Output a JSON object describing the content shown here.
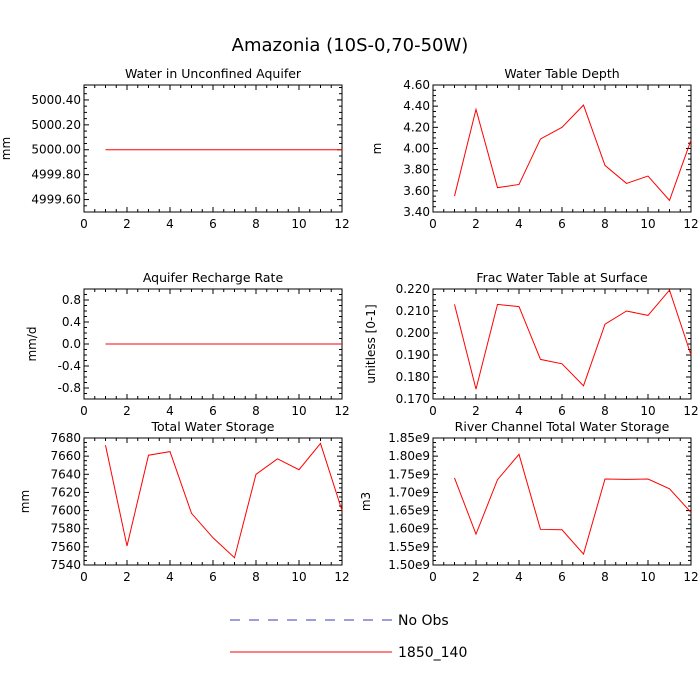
{
  "title": "Amazonia (10S-0,70-50W)",
  "legend": {
    "entries": [
      {
        "label": "No Obs",
        "color": "#3b3bbd",
        "dash": true
      },
      {
        "label": "1850_140",
        "color": "#ff0000",
        "dash": false
      }
    ]
  },
  "chart_data": [
    {
      "type": "line",
      "title": "Water in Unconfined Aquifer",
      "ylabel": "mm",
      "xlim": [
        0,
        12
      ],
      "ylim": [
        4999.5,
        5000.52
      ],
      "xticks": [
        0,
        2,
        4,
        6,
        8,
        10,
        12
      ],
      "yticks": [
        4999.6,
        4999.8,
        5000.0,
        5000.2,
        5000.4
      ],
      "ytick_labels": [
        "4999.60",
        "4999.80",
        "5000.00",
        "5000.20",
        "5000.40"
      ],
      "series": [
        {
          "name": "1850_140",
          "color": "#ff0000",
          "x": [
            1,
            2,
            3,
            4,
            5,
            6,
            7,
            8,
            9,
            10,
            11,
            12
          ],
          "y": [
            5000,
            5000,
            5000,
            5000,
            5000,
            5000,
            5000,
            5000,
            5000,
            5000,
            5000,
            5000
          ]
        }
      ]
    },
    {
      "type": "line",
      "title": "Water Table Depth",
      "ylabel": "m",
      "xlim": [
        0,
        12
      ],
      "ylim": [
        3.4,
        4.6
      ],
      "xticks": [
        0,
        2,
        4,
        6,
        8,
        10,
        12
      ],
      "yticks": [
        3.4,
        3.6,
        3.8,
        4.0,
        4.2,
        4.4,
        4.6
      ],
      "ytick_labels": [
        "3.40",
        "3.60",
        "3.80",
        "4.00",
        "4.20",
        "4.40",
        "4.60"
      ],
      "series": [
        {
          "name": "1850_140",
          "color": "#ff0000",
          "x": [
            1,
            2,
            3,
            4,
            5,
            6,
            7,
            8,
            9,
            10,
            11,
            12
          ],
          "y": [
            3.55,
            4.37,
            3.63,
            3.66,
            4.09,
            4.2,
            4.41,
            3.84,
            3.67,
            3.74,
            3.51,
            4.08
          ]
        }
      ]
    },
    {
      "type": "line",
      "title": "Aquifer Recharge Rate",
      "ylabel": "mm/d",
      "xlim": [
        0,
        12
      ],
      "ylim": [
        -1.0,
        1.0
      ],
      "xticks": [
        0,
        2,
        4,
        6,
        8,
        10,
        12
      ],
      "yticks": [
        -0.8,
        -0.4,
        0.0,
        0.4,
        0.8
      ],
      "ytick_labels": [
        "-0.8",
        "-0.4",
        "0.0",
        "0.4",
        "0.8"
      ],
      "series": [
        {
          "name": "1850_140",
          "color": "#ff0000",
          "x": [
            1,
            2,
            3,
            4,
            5,
            6,
            7,
            8,
            9,
            10,
            11,
            12
          ],
          "y": [
            0,
            0,
            0,
            0,
            0,
            0,
            0,
            0,
            0,
            0,
            0,
            0
          ]
        }
      ]
    },
    {
      "type": "line",
      "title": "Frac Water Table at Surface",
      "ylabel": "unitless [0-1]",
      "xlim": [
        0,
        12
      ],
      "ylim": [
        0.17,
        0.22
      ],
      "xticks": [
        0,
        2,
        4,
        6,
        8,
        10,
        12
      ],
      "yticks": [
        0.17,
        0.18,
        0.19,
        0.2,
        0.21,
        0.22
      ],
      "ytick_labels": [
        "0.170",
        "0.180",
        "0.190",
        "0.200",
        "0.210",
        "0.220"
      ],
      "series": [
        {
          "name": "1850_140",
          "color": "#ff0000",
          "x": [
            1,
            2,
            3,
            4,
            5,
            6,
            7,
            8,
            9,
            10,
            11,
            12
          ],
          "y": [
            0.213,
            0.1745,
            0.213,
            0.212,
            0.188,
            0.186,
            0.176,
            0.204,
            0.21,
            0.208,
            0.2195,
            0.19
          ]
        }
      ]
    },
    {
      "type": "line",
      "title": "Total Water Storage",
      "ylabel": "mm",
      "xlim": [
        0,
        12
      ],
      "ylim": [
        7540,
        7680
      ],
      "xticks": [
        0,
        2,
        4,
        6,
        8,
        10,
        12
      ],
      "yticks": [
        7540,
        7560,
        7580,
        7600,
        7620,
        7640,
        7660,
        7680
      ],
      "ytick_labels": [
        "7540",
        "7560",
        "7580",
        "7600",
        "7620",
        "7640",
        "7660",
        "7680"
      ],
      "series": [
        {
          "name": "1850_140",
          "color": "#ff0000",
          "x": [
            1,
            2,
            3,
            4,
            5,
            6,
            7,
            8,
            9,
            10,
            11,
            12
          ],
          "y": [
            7672,
            7561,
            7661,
            7665,
            7597,
            7570,
            7548,
            7640,
            7657,
            7645,
            7674,
            7600
          ]
        }
      ]
    },
    {
      "type": "line",
      "title": "River Channel Total Water Storage",
      "ylabel": "m3",
      "xlim": [
        0,
        12
      ],
      "ylim": [
        1500000000,
        1850000000
      ],
      "xticks": [
        0,
        2,
        4,
        6,
        8,
        10,
        12
      ],
      "yticks": [
        1500000000,
        1550000000,
        1600000000,
        1650000000,
        1700000000,
        1750000000,
        1800000000,
        1850000000
      ],
      "ytick_labels": [
        "1.50e9",
        "1.55e9",
        "1.60e9",
        "1.65e9",
        "1.70e9",
        "1.75e9",
        "1.80e9",
        "1.85e9"
      ],
      "series": [
        {
          "name": "1850_140",
          "color": "#ff0000",
          "x": [
            1,
            2,
            3,
            4,
            5,
            6,
            7,
            8,
            9,
            10,
            11,
            12
          ],
          "y": [
            1740000000,
            1585000000,
            1735000000,
            1805000000,
            1598000000,
            1597000000,
            1530000000,
            1737000000,
            1736000000,
            1737000000,
            1710000000,
            1645000000
          ]
        }
      ]
    }
  ]
}
